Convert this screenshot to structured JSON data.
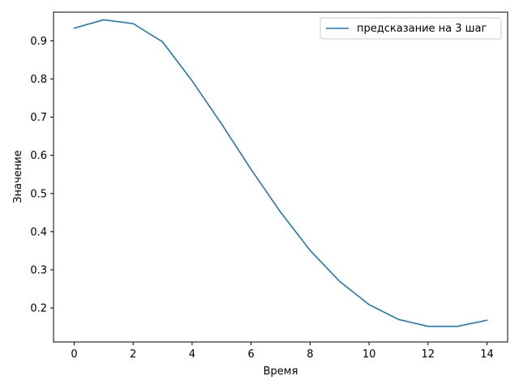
{
  "chart_data": {
    "type": "line",
    "title": "",
    "xlabel": "Время",
    "ylabel": "Значение",
    "xlim": [
      -0.7,
      14.7
    ],
    "ylim": [
      0.111,
      0.975
    ],
    "xticks": [
      0,
      2,
      4,
      6,
      8,
      10,
      12,
      14
    ],
    "xtick_labels": [
      "0",
      "2",
      "4",
      "6",
      "8",
      "10",
      "12",
      "14"
    ],
    "yticks": [
      0.2,
      0.3,
      0.4,
      0.5,
      0.6,
      0.7,
      0.8,
      0.9
    ],
    "ytick_labels": [
      "0.2",
      "0.3",
      "0.4",
      "0.5",
      "0.6",
      "0.7",
      "0.8",
      "0.9"
    ],
    "grid": false,
    "legend_position": "top-right",
    "series": [
      {
        "name": "предсказание на 3 шаг",
        "color": "#1f77b4",
        "x": [
          0,
          1,
          2,
          3,
          4,
          5,
          6,
          7,
          8,
          9,
          10,
          11,
          12,
          13,
          14
        ],
        "y": [
          0.933,
          0.955,
          0.945,
          0.897,
          0.795,
          0.682,
          0.563,
          0.451,
          0.351,
          0.27,
          0.209,
          0.17,
          0.152,
          0.152,
          0.168
        ]
      }
    ]
  }
}
